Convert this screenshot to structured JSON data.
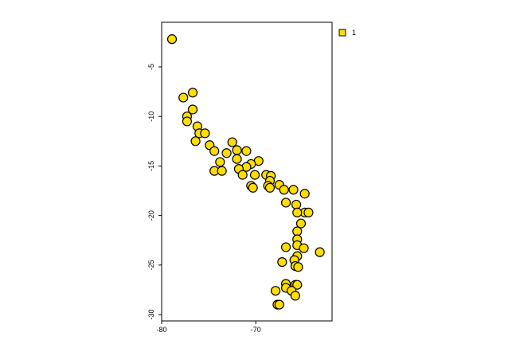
{
  "chart_data": {
    "type": "scatter",
    "series": [
      {
        "name": "1",
        "color": "#ffdd00",
        "x": [
          -78.9,
          -76.7,
          -77.7,
          -76.7,
          -77.3,
          -77.3,
          -76.2,
          -76.0,
          -75.4,
          -76.4,
          -74.9,
          -72.5,
          -74.4,
          -73.1,
          -72.0,
          -71.0,
          -73.8,
          -72.0,
          -69.7,
          -70.5,
          -71.0,
          -71.8,
          -74.4,
          -73.6,
          -71.4,
          -70.1,
          -68.9,
          -68.4,
          -68.5,
          -70.5,
          -70.3,
          -68.7,
          -68.5,
          -67.5,
          -67.0,
          -66.0,
          -64.8,
          -66.8,
          -65.7,
          -64.8,
          -65.6,
          -64.4,
          -65.2,
          -65.6,
          -65.6,
          -65.6,
          -66.8,
          -64.9,
          -63.2,
          -65.6,
          -65.9,
          -67.2,
          -65.8,
          -65.5,
          -66.8,
          -65.8,
          -65.6,
          -66.8,
          -67.9,
          -66.2,
          -65.8,
          -67.7,
          -67.5
        ],
        "values": [
          -2.2,
          -7.6,
          -8.1,
          -9.3,
          -10.0,
          -10.5,
          -11.0,
          -11.7,
          -11.7,
          -12.5,
          -12.9,
          -12.6,
          -13.5,
          -13.7,
          -13.4,
          -13.5,
          -14.6,
          -14.3,
          -14.5,
          -14.8,
          -15.1,
          -15.3,
          -15.5,
          -15.5,
          -15.9,
          -15.9,
          -15.9,
          -16.0,
          -16.5,
          -17.0,
          -17.2,
          -17.0,
          -17.2,
          -16.9,
          -17.4,
          -17.4,
          -17.8,
          -18.7,
          -18.9,
          -19.7,
          -19.7,
          -19.7,
          -20.8,
          -21.6,
          -22.4,
          -23.0,
          -23.2,
          -23.3,
          -23.7,
          -24.1,
          -24.5,
          -24.7,
          -25.1,
          -25.2,
          -26.9,
          -27.0,
          -27.0,
          -27.3,
          -27.6,
          -27.6,
          -28.1,
          -29.0,
          -29.0
        ]
      }
    ],
    "xlim": [
      -80,
      -61.9
    ],
    "xticks": [
      -80,
      -70
    ],
    "ylim": [
      -30.64,
      -0.5
    ],
    "yticks": [
      -30,
      -25,
      -20,
      -15,
      -10,
      -5
    ],
    "legend": "top-right"
  }
}
